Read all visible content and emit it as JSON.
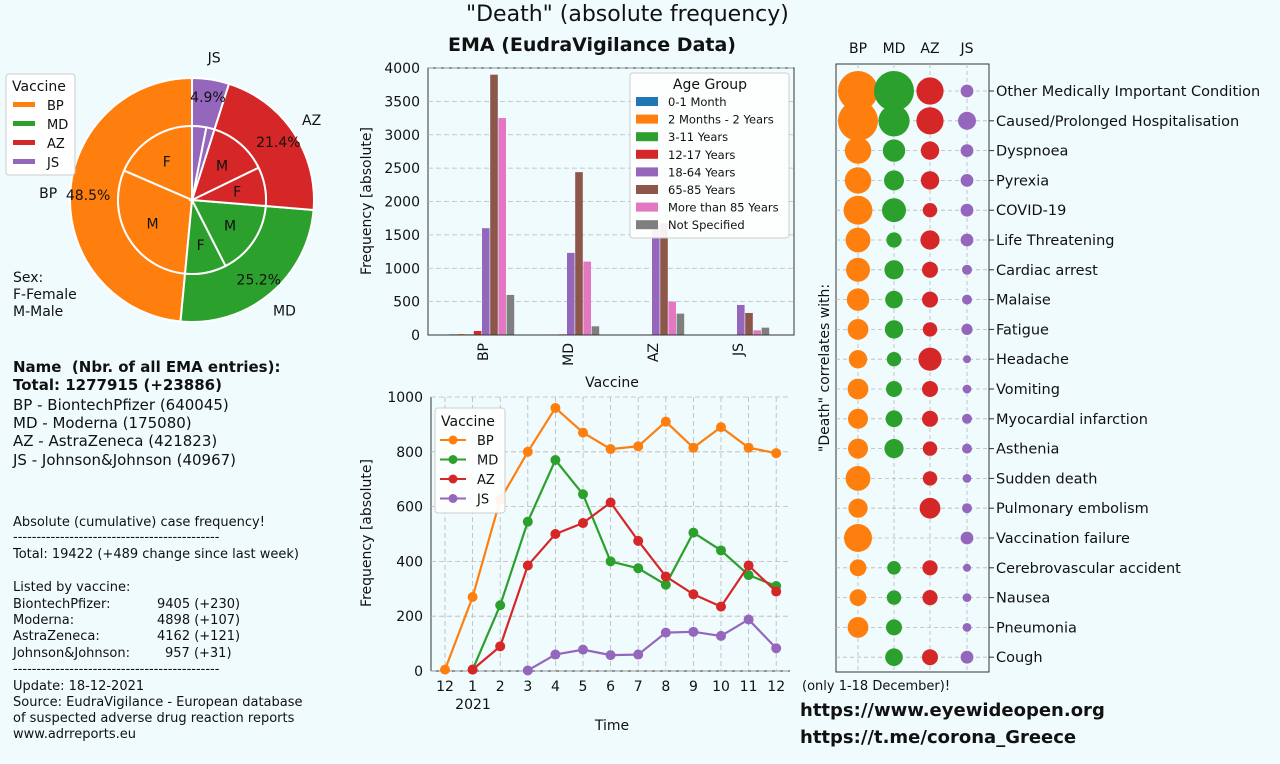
{
  "figure": {
    "title": "\"Death\" (absolute frequency)",
    "subtitle": "EMA (EudraVigilance Data)",
    "links": [
      "https://www.eyewideopen.org",
      "https://t.me/corona_Greece"
    ],
    "december_note": "(only 1-18 December)!"
  },
  "info": {
    "name_header": "Name  (Nbr. of all EMA entries):",
    "total_line": "Total: 1277915 (+23886)",
    "vaccine_names": [
      "BP - BiontechPfizer (640045)",
      "MD - Moderna (175080)",
      "AZ - AstraZeneca (421823)",
      "JS - Johnson&Johnson (40967)"
    ],
    "absolute_header": "Absolute (cumulative) case frequency!",
    "divider": "--------------------------------------------",
    "total_change": "Total: 19422 (+489 change since last week)",
    "listed_header": "Listed by vaccine:",
    "listed": [
      {
        "name": "BiontechPfizer:",
        "value": "9405 (+230)"
      },
      {
        "name": "Moderna:",
        "value": "4898 (+107)"
      },
      {
        "name": "AstraZeneca:",
        "value": "4162 (+121)"
      },
      {
        "name": "Johnson&Johnson:",
        "value": "957 (+31)"
      }
    ],
    "update": "Update: 18-12-2021",
    "source": "Source: EudraVigilance - European database",
    "source2": "of suspected adverse drug reaction reports",
    "website": "www.adrreports.eu"
  },
  "colors": {
    "BP": "#ff7f0e",
    "MD": "#2ca02c",
    "AZ": "#d62728",
    "JS": "#9467bd",
    "grid": "#b8b8b8"
  },
  "chart_data": [
    {
      "type": "pie",
      "legend_title": "Vaccine",
      "legend_placement": "top-left",
      "outer": {
        "labels": [
          "BP",
          "MD",
          "AZ",
          "JS"
        ],
        "percent_labels": [
          "48.5%",
          "25.2%",
          "21.4%",
          "4.9%"
        ],
        "values": [
          48.5,
          25.2,
          21.4,
          4.9
        ]
      },
      "inner": {
        "labels": [
          "F",
          "M",
          "F",
          "M",
          "F",
          "M",
          "F",
          "M"
        ],
        "values": [
          18.5,
          30.0,
          9.0,
          16.2,
          8.5,
          12.9,
          1.8,
          3.1
        ]
      },
      "sex_legend": [
        "Sex:",
        "F-Female",
        "M-Male"
      ]
    },
    {
      "type": "bar",
      "title": "",
      "xlabel": "Vaccine",
      "ylabel": "Frequency [absolute]",
      "categories": [
        "BP",
        "MD",
        "AZ",
        "JS"
      ],
      "ylim": [
        0,
        4000
      ],
      "yticks": [
        0,
        500,
        1000,
        1500,
        2000,
        2500,
        3000,
        3500,
        4000
      ],
      "grid": true,
      "legend_title": "Age Group",
      "legend_placement": "top-right",
      "series": [
        {
          "name": "0-1 Month",
          "color": "#1f77b4",
          "values": [
            10,
            5,
            3,
            1
          ]
        },
        {
          "name": "2 Months - 2 Years",
          "color": "#ff7f0e",
          "values": [
            15,
            8,
            4,
            1
          ]
        },
        {
          "name": "3-11 Years",
          "color": "#2ca02c",
          "values": [
            10,
            4,
            3,
            1
          ]
        },
        {
          "name": "12-17 Years",
          "color": "#d62728",
          "values": [
            60,
            10,
            8,
            5
          ]
        },
        {
          "name": "18-64 Years",
          "color": "#9467bd",
          "values": [
            1600,
            1230,
            1670,
            450
          ]
        },
        {
          "name": "65-85 Years",
          "color": "#8c564b",
          "values": [
            3900,
            2440,
            1670,
            330
          ]
        },
        {
          "name": "More than 85 Years",
          "color": "#e377c2",
          "values": [
            3250,
            1100,
            500,
            70
          ]
        },
        {
          "name": "Not Specified",
          "color": "#7f7f7f",
          "values": [
            600,
            130,
            320,
            110
          ]
        }
      ]
    },
    {
      "type": "line",
      "xlabel": "Time",
      "ylabel": "Frequency [absolute]",
      "x": [
        "12",
        "1",
        "2",
        "3",
        "4",
        "5",
        "6",
        "7",
        "8",
        "9",
        "10",
        "11",
        "12"
      ],
      "year_label": "2021",
      "ylim": [
        0,
        1000
      ],
      "yticks": [
        0,
        200,
        400,
        600,
        800,
        1000
      ],
      "grid": true,
      "legend_title": "Vaccine",
      "legend_placement": "top-left",
      "series": [
        {
          "name": "BP",
          "values": [
            5,
            270,
            625,
            800,
            960,
            870,
            810,
            820,
            910,
            815,
            890,
            815,
            795
          ]
        },
        {
          "name": "MD",
          "values": [
            null,
            5,
            240,
            545,
            770,
            645,
            400,
            375,
            315,
            505,
            440,
            350,
            310
          ]
        },
        {
          "name": "AZ",
          "values": [
            null,
            5,
            90,
            385,
            500,
            540,
            615,
            475,
            345,
            280,
            235,
            385,
            290
          ]
        },
        {
          "name": "JS",
          "values": [
            null,
            null,
            null,
            2,
            60,
            78,
            58,
            60,
            140,
            143,
            128,
            188,
            83
          ]
        }
      ]
    },
    {
      "type": "scatter",
      "ylabel": "\"Death\" correlates with:",
      "categories": [
        "BP",
        "MD",
        "AZ",
        "JS"
      ],
      "grid": true,
      "rows": [
        "Other Medically Important Condition",
        "Caused/Prolonged Hospitalisation",
        "Dyspnoea",
        "Pyrexia",
        "COVID-19",
        "Life Threatening",
        "Cardiac arrest",
        "Malaise",
        "Fatigue",
        "Headache",
        "Vomiting",
        "Myocardial infarction",
        "Asthenia",
        "Sudden death",
        "Pulmonary embolism",
        "Vaccination failure",
        "Cerebrovascular accident",
        "Nausea",
        "Pneumonia",
        "Cough"
      ],
      "sizes": [
        [
          1.0,
          1.0,
          0.68,
          0.32
        ],
        [
          1.0,
          0.78,
          0.68,
          0.45
        ],
        [
          0.66,
          0.56,
          0.46,
          0.32
        ],
        [
          0.66,
          0.5,
          0.46,
          0.32
        ],
        [
          0.72,
          0.6,
          0.36,
          0.32
        ],
        [
          0.62,
          0.38,
          0.48,
          0.32
        ],
        [
          0.6,
          0.48,
          0.4,
          0.25
        ],
        [
          0.56,
          0.44,
          0.4,
          0.25
        ],
        [
          0.52,
          0.46,
          0.36,
          0.28
        ],
        [
          0.46,
          0.36,
          0.58,
          0.2
        ],
        [
          0.52,
          0.4,
          0.4,
          0.22
        ],
        [
          0.5,
          0.42,
          0.4,
          0.25
        ],
        [
          0.5,
          0.48,
          0.36,
          0.25
        ],
        [
          0.62,
          0,
          0.36,
          0.22
        ],
        [
          0.48,
          0,
          0.52,
          0.25
        ],
        [
          0.7,
          0,
          0,
          0.32
        ],
        [
          0.42,
          0.34,
          0.38,
          0.2
        ],
        [
          0.42,
          0.36,
          0.38,
          0.22
        ],
        [
          0.52,
          0.4,
          0,
          0.22
        ],
        [
          0,
          0.44,
          0.4,
          0.32
        ]
      ]
    }
  ]
}
